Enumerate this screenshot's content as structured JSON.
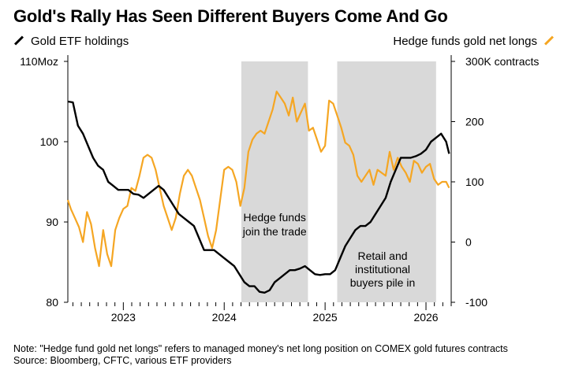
{
  "title": "Gold's Rally Has Seen Different Buyers Come And Go",
  "legend": {
    "left": "Gold ETF holdings",
    "right": "Hedge funds gold net longs"
  },
  "colors": {
    "etf": "#000000",
    "hedge": "#f5a623",
    "shade": "#d9d9d9",
    "axis": "#000000"
  },
  "annotations": {
    "shade1": [
      "Hedge funds",
      "join the trade"
    ],
    "shade2": [
      "Retail and",
      "institutional",
      "buyers pile in"
    ]
  },
  "note": {
    "line1": "Note: \"Hedge fund gold net longs\" refers to managed money's net long position on COMEX gold futures contracts",
    "line2": "Source: Bloomberg, CFTC, various ETF providers"
  },
  "chart_data": {
    "type": "line",
    "title": "Gold's Rally Has Seen Different Buyers Come And Go",
    "x_range": [
      2022.45,
      2026.25
    ],
    "x_ticks": [
      2023,
      2024,
      2025,
      2026
    ],
    "x_tick_labels": [
      "2023",
      "2024",
      "2025",
      "2026"
    ],
    "shaded_periods": [
      [
        2024.17,
        2024.83
      ],
      [
        2025.12,
        2026.1
      ]
    ],
    "left_axis": {
      "label": "Gold ETF holdings",
      "unit": "Moz",
      "range": [
        80,
        110
      ],
      "ticks": [
        80,
        90,
        100,
        110
      ],
      "tick_labels": [
        "80",
        "90",
        "100",
        "110Moz"
      ]
    },
    "right_axis": {
      "label": "Hedge funds gold net longs",
      "unit": "K contracts",
      "range": [
        -100,
        300
      ],
      "ticks": [
        -100,
        0,
        100,
        200,
        300
      ],
      "tick_labels": [
        "-100",
        "0",
        "100",
        "200",
        "300K contracts"
      ]
    },
    "series": [
      {
        "name": "Gold ETF holdings",
        "axis": "left",
        "points": [
          [
            2022.45,
            105
          ],
          [
            2022.5,
            104.9
          ],
          [
            2022.55,
            102
          ],
          [
            2022.6,
            101
          ],
          [
            2022.65,
            99.5
          ],
          [
            2022.7,
            98
          ],
          [
            2022.75,
            97
          ],
          [
            2022.8,
            96.5
          ],
          [
            2022.85,
            95
          ],
          [
            2022.9,
            94.5
          ],
          [
            2022.95,
            94
          ],
          [
            2023.0,
            94
          ],
          [
            2023.05,
            94
          ],
          [
            2023.1,
            93.5
          ],
          [
            2023.15,
            93.4
          ],
          [
            2023.2,
            93
          ],
          [
            2023.25,
            93.5
          ],
          [
            2023.3,
            94
          ],
          [
            2023.35,
            94.5
          ],
          [
            2023.4,
            94
          ],
          [
            2023.45,
            93
          ],
          [
            2023.5,
            92
          ],
          [
            2023.55,
            91
          ],
          [
            2023.6,
            90.5
          ],
          [
            2023.65,
            90
          ],
          [
            2023.7,
            89.5
          ],
          [
            2023.75,
            88
          ],
          [
            2023.8,
            86.5
          ],
          [
            2023.85,
            86.5
          ],
          [
            2023.9,
            86.5
          ],
          [
            2023.95,
            86
          ],
          [
            2024.0,
            85.5
          ],
          [
            2024.05,
            85
          ],
          [
            2024.1,
            84.5
          ],
          [
            2024.15,
            83.5
          ],
          [
            2024.2,
            82.5
          ],
          [
            2024.25,
            82
          ],
          [
            2024.3,
            82
          ],
          [
            2024.35,
            81.3
          ],
          [
            2024.4,
            81.2
          ],
          [
            2024.45,
            81.5
          ],
          [
            2024.5,
            82.5
          ],
          [
            2024.55,
            83
          ],
          [
            2024.6,
            83.5
          ],
          [
            2024.65,
            84
          ],
          [
            2024.7,
            84
          ],
          [
            2024.75,
            84.2
          ],
          [
            2024.8,
            84.5
          ],
          [
            2024.85,
            84
          ],
          [
            2024.9,
            83.5
          ],
          [
            2024.95,
            83.4
          ],
          [
            2025.0,
            83.5
          ],
          [
            2025.05,
            83.5
          ],
          [
            2025.1,
            84
          ],
          [
            2025.15,
            85.5
          ],
          [
            2025.2,
            87
          ],
          [
            2025.25,
            88
          ],
          [
            2025.3,
            89
          ],
          [
            2025.35,
            89.5
          ],
          [
            2025.4,
            89.5
          ],
          [
            2025.45,
            90
          ],
          [
            2025.5,
            91
          ],
          [
            2025.55,
            92
          ],
          [
            2025.6,
            93
          ],
          [
            2025.65,
            95
          ],
          [
            2025.7,
            96.5
          ],
          [
            2025.75,
            98
          ],
          [
            2025.8,
            98
          ],
          [
            2025.85,
            98
          ],
          [
            2025.9,
            98.2
          ],
          [
            2025.95,
            98.5
          ],
          [
            2026.0,
            99
          ],
          [
            2026.05,
            100
          ],
          [
            2026.1,
            100.5
          ],
          [
            2026.15,
            101
          ],
          [
            2026.2,
            100
          ],
          [
            2026.23,
            98.5
          ]
        ]
      },
      {
        "name": "Hedge funds gold net longs",
        "axis": "right",
        "points": [
          [
            2022.45,
            70
          ],
          [
            2022.48,
            55
          ],
          [
            2022.52,
            40
          ],
          [
            2022.56,
            25
          ],
          [
            2022.6,
            0
          ],
          [
            2022.64,
            50
          ],
          [
            2022.68,
            30
          ],
          [
            2022.72,
            -10
          ],
          [
            2022.76,
            -40
          ],
          [
            2022.8,
            20
          ],
          [
            2022.84,
            -20
          ],
          [
            2022.88,
            -40
          ],
          [
            2022.92,
            20
          ],
          [
            2022.96,
            40
          ],
          [
            2023.0,
            55
          ],
          [
            2023.04,
            60
          ],
          [
            2023.08,
            90
          ],
          [
            2023.12,
            85
          ],
          [
            2023.16,
            110
          ],
          [
            2023.2,
            140
          ],
          [
            2023.24,
            145
          ],
          [
            2023.28,
            140
          ],
          [
            2023.32,
            120
          ],
          [
            2023.36,
            90
          ],
          [
            2023.4,
            60
          ],
          [
            2023.44,
            40
          ],
          [
            2023.48,
            20
          ],
          [
            2023.52,
            40
          ],
          [
            2023.56,
            80
          ],
          [
            2023.6,
            110
          ],
          [
            2023.64,
            120
          ],
          [
            2023.68,
            110
          ],
          [
            2023.72,
            90
          ],
          [
            2023.76,
            70
          ],
          [
            2023.8,
            40
          ],
          [
            2023.84,
            10
          ],
          [
            2023.88,
            -10
          ],
          [
            2023.92,
            20
          ],
          [
            2023.96,
            70
          ],
          [
            2024.0,
            120
          ],
          [
            2024.04,
            125
          ],
          [
            2024.08,
            120
          ],
          [
            2024.12,
            100
          ],
          [
            2024.16,
            60
          ],
          [
            2024.2,
            90
          ],
          [
            2024.24,
            150
          ],
          [
            2024.28,
            170
          ],
          [
            2024.32,
            180
          ],
          [
            2024.36,
            185
          ],
          [
            2024.4,
            180
          ],
          [
            2024.44,
            200
          ],
          [
            2024.48,
            220
          ],
          [
            2024.52,
            250
          ],
          [
            2024.56,
            240
          ],
          [
            2024.6,
            230
          ],
          [
            2024.64,
            210
          ],
          [
            2024.68,
            240
          ],
          [
            2024.72,
            200
          ],
          [
            2024.76,
            215
          ],
          [
            2024.8,
            230
          ],
          [
            2024.84,
            185
          ],
          [
            2024.88,
            190
          ],
          [
            2024.92,
            170
          ],
          [
            2024.96,
            150
          ],
          [
            2025.0,
            160
          ],
          [
            2025.04,
            235
          ],
          [
            2025.08,
            230
          ],
          [
            2025.12,
            210
          ],
          [
            2025.16,
            190
          ],
          [
            2025.2,
            165
          ],
          [
            2025.24,
            160
          ],
          [
            2025.28,
            145
          ],
          [
            2025.32,
            110
          ],
          [
            2025.36,
            100
          ],
          [
            2025.4,
            110
          ],
          [
            2025.44,
            120
          ],
          [
            2025.48,
            95
          ],
          [
            2025.52,
            120
          ],
          [
            2025.56,
            115
          ],
          [
            2025.6,
            110
          ],
          [
            2025.64,
            150
          ],
          [
            2025.68,
            120
          ],
          [
            2025.72,
            140
          ],
          [
            2025.76,
            125
          ],
          [
            2025.8,
            115
          ],
          [
            2025.84,
            100
          ],
          [
            2025.88,
            135
          ],
          [
            2025.92,
            130
          ],
          [
            2025.96,
            115
          ],
          [
            2026.0,
            125
          ],
          [
            2026.04,
            130
          ],
          [
            2026.08,
            105
          ],
          [
            2026.12,
            95
          ],
          [
            2026.16,
            100
          ],
          [
            2026.2,
            100
          ],
          [
            2026.23,
            90
          ]
        ]
      }
    ]
  }
}
